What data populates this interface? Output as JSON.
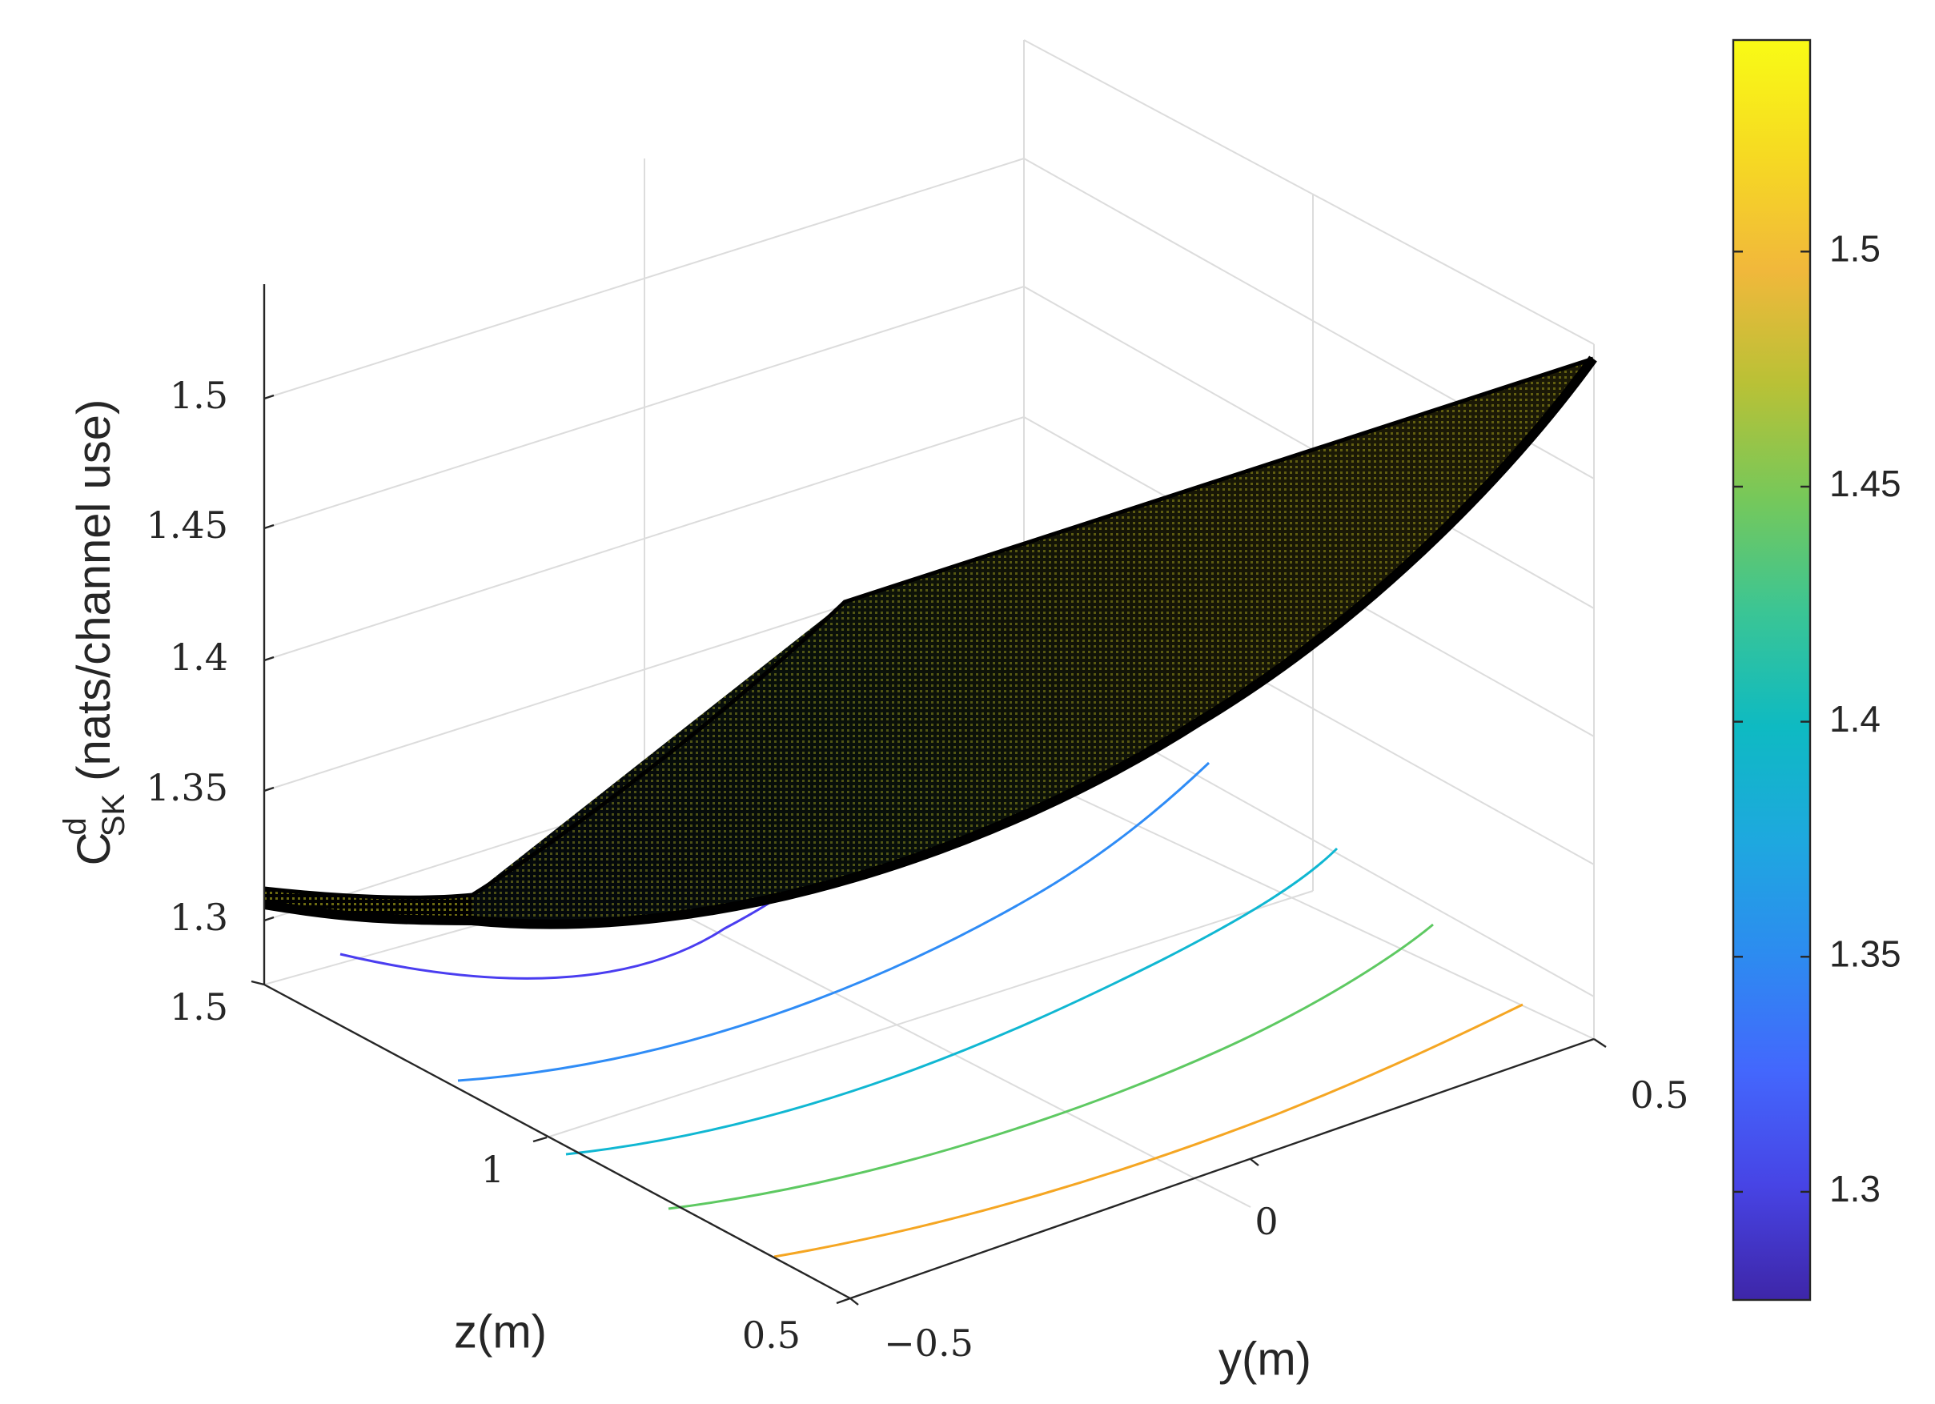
{
  "chart_data": {
    "type": "surface",
    "xlabel": "y(m)",
    "ylabel": "z(m)",
    "zlabel": {
      "base": "C",
      "superscript": "d",
      "subscript": "SK",
      "unit": "(nats/channel use)"
    },
    "x_ticks": [
      "−0.5",
      "0",
      "0.5"
    ],
    "y_ticks": [
      "0.5",
      "1",
      "1.5"
    ],
    "z_ticks": [
      "1.3",
      "1.35",
      "1.4",
      "1.45",
      "1.5"
    ],
    "colorbar_ticks": [
      "1.3",
      "1.35",
      "1.4",
      "1.45",
      "1.5"
    ],
    "xlim": [
      -0.5,
      0.5
    ],
    "ylim": [
      0.5,
      1.5
    ],
    "zlim": [
      1.28,
      1.54
    ],
    "colorbar_range": [
      1.277,
      1.545
    ],
    "grid": true,
    "surface": {
      "corners": [
        {
          "y": -0.5,
          "z": 1.5,
          "value": 1.313
        },
        {
          "y": 0.5,
          "z": 1.5,
          "value": 1.313
        },
        {
          "y": -0.5,
          "z": 0.5,
          "value": 1.442
        },
        {
          "y": 0.5,
          "z": 0.5,
          "value": 1.537
        }
      ],
      "minimum": {
        "y": 0.0,
        "z": 1.5,
        "value": 1.303
      }
    },
    "contour_levels": [
      1.3,
      1.35,
      1.4,
      1.45,
      1.5
    ],
    "contour_colors": [
      "#4a3df0",
      "#2f8cf6",
      "#10b7d2",
      "#5ec962",
      "#f5a623"
    ],
    "colormap": [
      "#3e26a8",
      "#4744e5",
      "#4367fd",
      "#2d8bf0",
      "#1ea8df",
      "#0ebac2",
      "#3ac595",
      "#76c85a",
      "#b9c136",
      "#f1b83b",
      "#f6da22",
      "#f9fb15"
    ]
  }
}
